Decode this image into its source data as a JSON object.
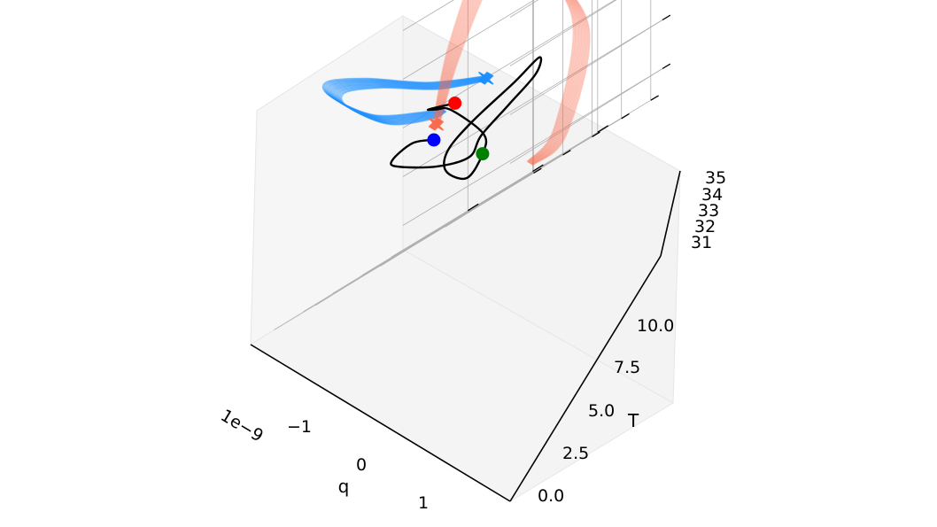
{
  "chart_data": {
    "type": "line",
    "projection": "3d",
    "axes": {
      "q": {
        "label": "q",
        "offset_text": "1e−9",
        "ticks": [
          "−1",
          "0",
          "1"
        ],
        "range": [
          -2,
          2
        ]
      },
      "T": {
        "label": "T",
        "ticks": [
          "0.0",
          "2.5",
          "5.0",
          "7.5",
          "10.0"
        ],
        "range": [
          -1,
          12
        ]
      },
      "z": {
        "label": "",
        "ticks": [
          "31",
          "32",
          "33",
          "34",
          "35"
        ],
        "range": [
          30.5,
          35.3
        ]
      }
    },
    "grid": true,
    "series": [
      {
        "color": "#1e90ff",
        "style": "ensemble of trajectories, end marker ×",
        "points": [
          [
            -0.45,
            0.5,
            33.0
          ],
          [
            -0.95,
            2.2,
            33.5
          ],
          [
            -1.45,
            4.5,
            34.3
          ],
          [
            -1.55,
            7.2,
            34.7
          ],
          [
            -1.1,
            9.5,
            34.4
          ],
          [
            -0.45,
            9.5,
            33.5
          ],
          [
            -0.2,
            7.0,
            33.0
          ],
          [
            -0.3,
            5.0,
            32.9
          ]
        ]
      },
      {
        "color": "#fa6a4e",
        "style": "ensemble of trajectories, end marker ×",
        "points": [
          [
            -0.08,
            6.8,
            32.7
          ],
          [
            0.6,
            9.0,
            34.0
          ],
          [
            1.5,
            11.0,
            35.3
          ],
          [
            2.0,
            10.5,
            35.0
          ],
          [
            2.0,
            6.0,
            33.0
          ],
          [
            0.7,
            0.5,
            31.0
          ],
          [
            0.0,
            -0.8,
            30.7
          ]
        ]
      },
      {
        "color": "#000000",
        "style": "single trajectory",
        "points": [
          [
            -0.35,
            5.5,
            32.4
          ],
          [
            -0.55,
            6.2,
            32.6
          ],
          [
            -0.9,
            6.0,
            32.5
          ],
          [
            -1.0,
            5.0,
            32.3
          ],
          [
            -0.65,
            3.5,
            31.8
          ],
          [
            -0.25,
            3.0,
            31.6
          ],
          [
            0.2,
            4.5,
            31.9
          ],
          [
            0.9,
            6.0,
            32.2
          ],
          [
            1.6,
            7.6,
            32.5
          ],
          [
            1.8,
            8.4,
            32.8
          ],
          [
            1.4,
            8.3,
            32.6
          ],
          [
            0.55,
            7.3,
            32.3
          ],
          [
            -0.05,
            6.0,
            32.0
          ],
          [
            -0.25,
            5.0,
            31.6
          ],
          [
            -0.2,
            3.5,
            31.2
          ],
          [
            -0.05,
            3.0,
            31.5
          ],
          [
            0.0,
            3.2,
            31.9
          ],
          [
            0.1,
            6.5,
            32.8
          ],
          [
            0.0,
            7.2,
            33.0
          ],
          [
            -0.07,
            7.5,
            33.1
          ],
          [
            0.3,
            7.3,
            32.9
          ]
        ]
      }
    ],
    "markers": [
      {
        "color": "#0000ff",
        "shape": "circle",
        "point": [
          -0.35,
          5.5,
          32.4
        ]
      },
      {
        "color": "#ff0000",
        "shape": "circle",
        "point": [
          0.3,
          7.3,
          32.9
        ]
      },
      {
        "color": "#008000",
        "shape": "circle",
        "point": [
          -0.05,
          3.0,
          31.5
        ]
      }
    ]
  }
}
